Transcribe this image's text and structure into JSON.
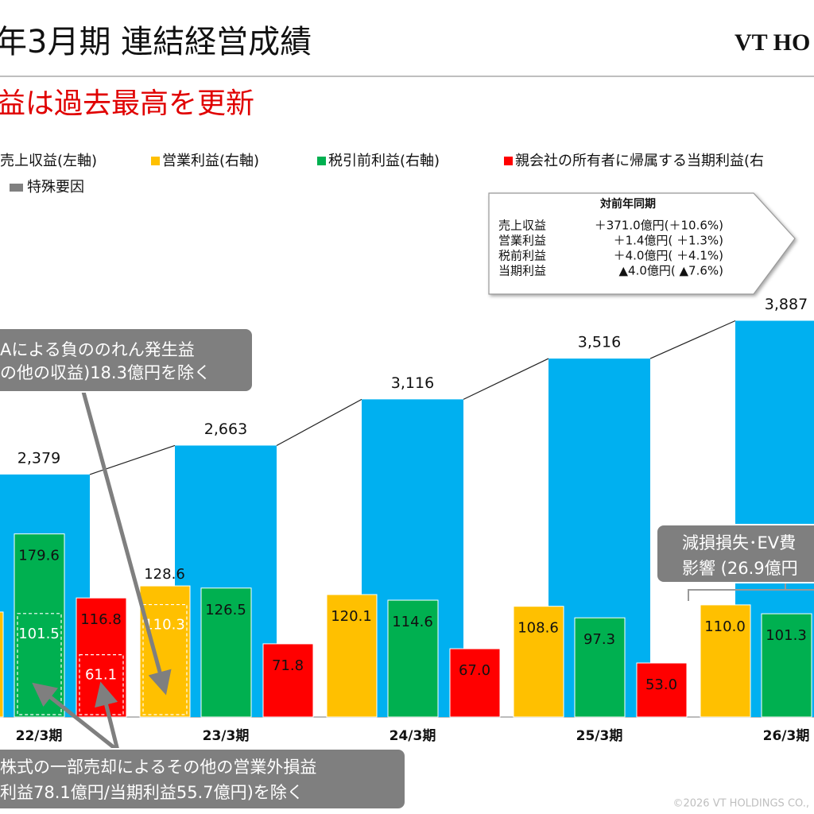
{
  "header": {
    "title": "年3月期 連結経営成績",
    "logo": "VT HO"
  },
  "subtitle": "益は過去最高を更新",
  "chart_data": {
    "type": "bar",
    "categories": [
      "22/3期",
      "23/3期",
      "24/3期",
      "25/3期",
      "26/3期"
    ],
    "ylim": [
      0,
      4000
    ],
    "y2lim": [
      0,
      400
    ],
    "series": [
      {
        "name": "売上収益(左軸)",
        "color": "#00b0f0",
        "values": [
          2379,
          2663,
          3116,
          3516,
          3887
        ],
        "value_labels": [
          "2,379",
          "2,663",
          "3,116",
          "3,516",
          "3,887"
        ]
      },
      {
        "name": "営業利益(右軸)",
        "color": "#ffc000",
        "axis": "y2",
        "values": [
          103,
          128.6,
          120.1,
          108.6,
          110.0
        ],
        "value_labels": [
          null,
          "128.6",
          "120.1",
          "108.6",
          "110.0"
        ]
      },
      {
        "name": "税引前利益(右軸)",
        "color": "#00b050",
        "axis": "y2",
        "values": [
          179.6,
          126.5,
          114.6,
          97.3,
          101.3
        ],
        "value_labels": [
          "179.6",
          "126.5",
          "114.6",
          "97.3",
          "101.3"
        ]
      },
      {
        "name": "親会社の所有者に帰属する当期利益(右",
        "color": "#ff0000",
        "axis": "y2",
        "values": [
          116.8,
          71.8,
          67.0,
          53.0,
          null
        ],
        "value_labels": [
          "116.8",
          "71.8",
          "67.0",
          "53.0",
          null
        ]
      }
    ],
    "special": {
      "name": "特殊要因",
      "color": "#808080",
      "items": [
        {
          "series": 2,
          "category": 0,
          "value": 101.5
        },
        {
          "series": 3,
          "category": 0,
          "value": 61.1
        },
        {
          "series": 1,
          "category": 1,
          "value": 110.3
        }
      ]
    }
  },
  "comparison": {
    "title": "対前年同期",
    "rows": [
      [
        "売上収益",
        "＋371.0億円(＋10.6%)"
      ],
      [
        "営業利益",
        "＋1.4億円( ＋1.3%)"
      ],
      [
        "税前利益",
        "＋4.0億円( ＋4.1%)"
      ],
      [
        "当期利益",
        "▲4.0億円( ▲7.6%)"
      ]
    ]
  },
  "callouts": [
    {
      "lines": [
        "Aによる負ののれん発生益",
        "の他の収益)18.3億円を除く"
      ]
    },
    {
      "lines": [
        "株式の一部売却によるその他の営業外損益",
        "利益78.1億円/当期利益55.7億円)を除く"
      ]
    },
    {
      "lines": [
        "減損損失･EV費",
        "影響 (26.9億円"
      ]
    }
  ],
  "footer": "©2026 VT HOLDINGS CO.,"
}
